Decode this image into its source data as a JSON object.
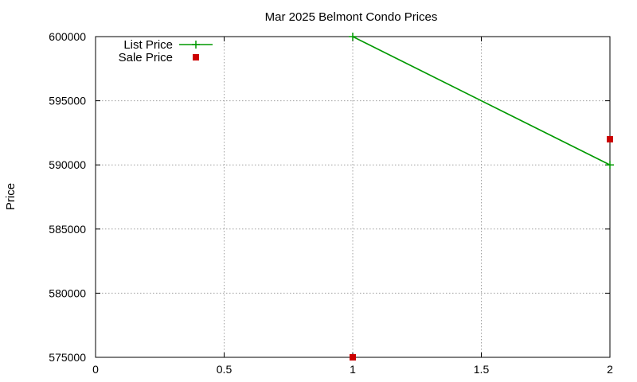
{
  "chart_data": {
    "type": "line",
    "title": "Mar 2025 Belmont Condo Prices",
    "xlabel": "",
    "ylabel": "Price",
    "xlim": [
      0,
      2
    ],
    "ylim": [
      575000,
      600000
    ],
    "x_ticks": [
      "0",
      "0.5",
      "1",
      "1.5",
      "2"
    ],
    "y_ticks": [
      "575000",
      "580000",
      "585000",
      "590000",
      "595000",
      "600000"
    ],
    "grid": true,
    "legend_position": "top-left",
    "series": [
      {
        "name": "List Price",
        "style": "line-points",
        "marker": "plus",
        "color": "#009900",
        "points": [
          {
            "x": 1,
            "y": 600000
          },
          {
            "x": 2,
            "y": 590000
          }
        ]
      },
      {
        "name": "Sale Price",
        "style": "points",
        "marker": "square",
        "color": "#cc0000",
        "points": [
          {
            "x": 1,
            "y": 575000
          },
          {
            "x": 2,
            "y": 592000
          }
        ]
      }
    ]
  }
}
